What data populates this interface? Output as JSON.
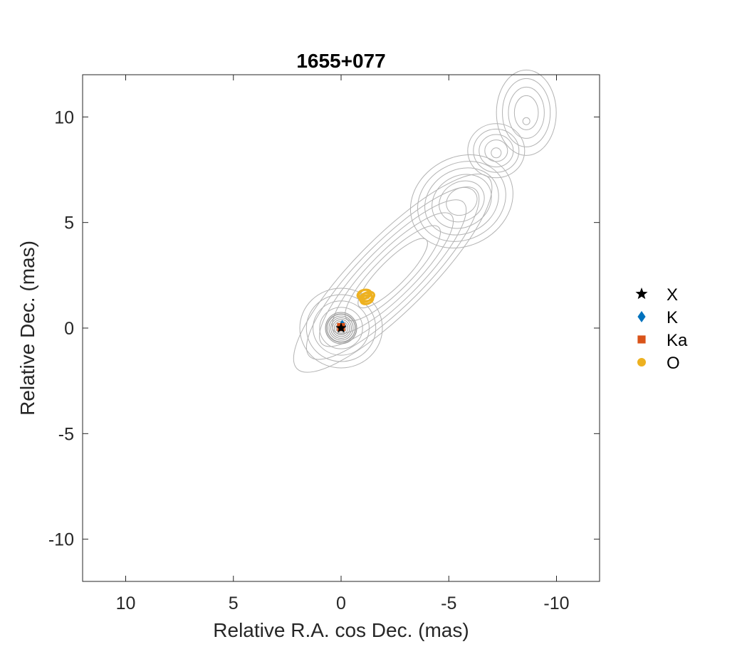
{
  "chart_data": {
    "type": "scatter",
    "title": "1655+077",
    "xlabel": "Relative R.A. cos Dec. (mas)",
    "ylabel": "Relative Dec. (mas)",
    "xlim": [
      12,
      -12
    ],
    "ylim": [
      -12,
      12
    ],
    "x_reversed": true,
    "xticks": [
      10,
      5,
      0,
      -5,
      -10
    ],
    "xtick_labels": [
      "10",
      "5",
      "0",
      "-5",
      "-10"
    ],
    "yticks": [
      10,
      5,
      0,
      -5,
      -10
    ],
    "ytick_labels": [
      "10",
      "5",
      "0",
      "-5",
      "-10"
    ],
    "grid": false,
    "legend_position": "outside-right",
    "contour_color": "#b3b3b3",
    "series": [
      {
        "name": "X",
        "marker": "star",
        "color": "#000000",
        "x": [
          0.0
        ],
        "y": [
          0.0
        ]
      },
      {
        "name": "K",
        "marker": "diamond",
        "color": "#0072bd",
        "x": [
          -0.05
        ],
        "y": [
          0.12
        ]
      },
      {
        "name": "Ka",
        "marker": "square",
        "color": "#d95319",
        "x": [
          0.0
        ],
        "y": [
          0.05
        ]
      },
      {
        "name": "O",
        "marker": "circle",
        "color": "#edb120",
        "x": [
          -1.1,
          -1.25,
          -1.15,
          -1.05,
          -1.2
        ],
        "y": [
          1.6,
          1.5,
          1.45,
          1.6,
          1.35
        ]
      }
    ]
  }
}
